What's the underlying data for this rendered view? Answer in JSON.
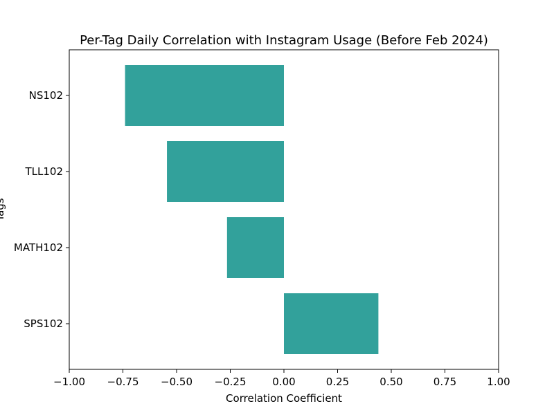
{
  "chart_data": {
    "type": "bar",
    "orientation": "horizontal",
    "title": "Per-Tag Daily Correlation with Instagram Usage (Before Feb 2024)",
    "xlabel": "Correlation Coefficient",
    "ylabel": "Tags",
    "xlim": [
      -1.0,
      1.0
    ],
    "xticks": [
      -1.0,
      -0.75,
      -0.5,
      -0.25,
      0.0,
      0.25,
      0.5,
      0.75,
      1.0
    ],
    "xtick_labels": [
      "−1.00",
      "−0.75",
      "−0.50",
      "−0.25",
      "0.00",
      "0.25",
      "0.50",
      "0.75",
      "1.00"
    ],
    "categories": [
      "NS102",
      "TLL102",
      "MATH102",
      "SPS102"
    ],
    "values": [
      -0.74,
      -0.545,
      -0.265,
      0.44
    ],
    "bar_color": "#32a19b",
    "grid": false,
    "legend": "none"
  }
}
